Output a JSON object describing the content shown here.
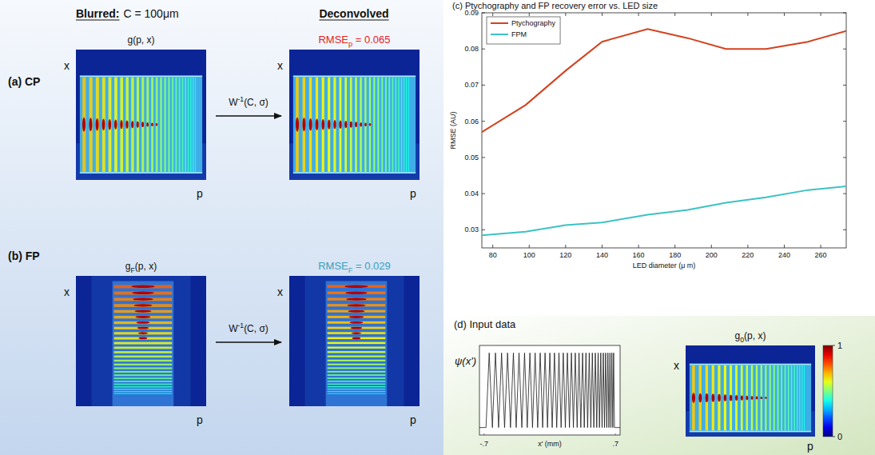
{
  "chart_data": [
    {
      "type": "line",
      "title": "(c) Ptychography and FP recovery error vs. LED size",
      "x_label": "LED diameter (μ m)",
      "y_label": "RMSE (AU)",
      "x": [
        74,
        98,
        120,
        140,
        165,
        187,
        208,
        230,
        253,
        274
      ],
      "series": [
        {
          "name": "Ptychography",
          "color": "#d2421f",
          "values": [
            0.057,
            0.0645,
            0.074,
            0.082,
            0.0855,
            0.083,
            0.08,
            0.08,
            0.082,
            0.085
          ]
        },
        {
          "name": "FPM",
          "color": "#3cc2c4",
          "values": [
            0.0285,
            0.0295,
            0.0313,
            0.032,
            0.0342,
            0.0355,
            0.0375,
            0.039,
            0.041,
            0.042
          ]
        }
      ],
      "xlim": [
        74,
        274
      ],
      "ylim": [
        0.025,
        0.09
      ],
      "xticks": [
        80,
        100,
        120,
        140,
        160,
        180,
        200,
        220,
        240,
        260
      ],
      "yticks": [
        0.03,
        0.04,
        0.05,
        0.06,
        0.07,
        0.08,
        0.09
      ],
      "legend": "upper left",
      "grid": false
    },
    {
      "type": "line",
      "x_label": "x' (mm)",
      "y_label": "ψ(x')",
      "x": [
        -0.75,
        -0.7,
        -0.68,
        -0.646,
        -0.612,
        -0.579,
        -0.546,
        -0.514,
        -0.482,
        -0.45,
        -0.419,
        -0.388,
        -0.358,
        -0.328,
        -0.298,
        -0.269,
        -0.24,
        -0.212,
        -0.184,
        -0.156,
        -0.129,
        -0.102,
        -0.076,
        -0.05,
        -0.024,
        0.001,
        0.026,
        0.05,
        0.074,
        0.098,
        0.121,
        0.144,
        0.166,
        0.188,
        0.21,
        0.231,
        0.252,
        0.272,
        0.292,
        0.312,
        0.331,
        0.35,
        0.368,
        0.386,
        0.404,
        0.421,
        0.438,
        0.454,
        0.47,
        0.486,
        0.501,
        0.516,
        0.53,
        0.544,
        0.558,
        0.571,
        0.584,
        0.596,
        0.608,
        0.62,
        0.631,
        0.642,
        0.652,
        0.662,
        0.672,
        0.681,
        0.69,
        0.7,
        0.75
      ],
      "values": [
        0,
        0,
        0,
        1,
        0,
        1,
        0,
        1,
        0,
        1,
        0,
        1,
        0,
        1,
        0,
        1,
        0,
        1,
        0,
        1,
        0,
        1,
        0,
        1,
        0,
        1,
        0,
        1,
        0,
        1,
        0,
        1,
        0,
        1,
        0,
        1,
        0,
        1,
        0,
        1,
        0,
        1,
        0,
        1,
        0,
        1,
        0,
        1,
        0,
        1,
        0,
        1,
        0,
        1,
        0,
        1,
        0,
        1,
        0,
        1,
        0,
        1,
        0,
        1,
        0,
        1,
        0,
        0,
        0
      ],
      "color": "#1a1a1a",
      "xlim": [
        -0.75,
        0.75
      ],
      "ylim": [
        -0.1,
        1.1
      ],
      "xticks": [
        {
          "value": -0.7,
          "label": "-.7"
        },
        {
          "value": 0.7,
          "label": ".7"
        }
      ],
      "tick_labels": "x"
    }
  ],
  "figure": {
    "header": {
      "blurred": "Blurred:",
      "blurred_setting": "C = 100μm",
      "deconvolved": "Deconvolved"
    },
    "rows": [
      {
        "label": "(a) CP",
        "style": "cp",
        "blurred_title": {
          "symbol": "g",
          "args": "(p, x)"
        },
        "operator": {
          "symbol": "W",
          "superscript": "-1",
          "args": "(C, σ)"
        },
        "result": {
          "metric": "RMSE",
          "subscript": "p",
          "equals": "=",
          "value": 0.065,
          "color": "#e8231c"
        },
        "x_axis": "p",
        "y_axis": "x"
      },
      {
        "label": "(b) FP",
        "style": "fp",
        "blurred_title": {
          "symbol": "g",
          "subscript": "F",
          "args": "(p, x)"
        },
        "operator": {
          "symbol": "W",
          "superscript": "-1",
          "args": "(C, σ)"
        },
        "result": {
          "metric": "RMSE",
          "subscript": "F",
          "equals": "=",
          "value": 0.029,
          "color": "#3d9fbf"
        },
        "x_axis": "p",
        "y_axis": "x"
      }
    ],
    "input": {
      "label": "(d) Input data",
      "title": {
        "symbol": "g",
        "subscript": "0",
        "args": "(p, x)"
      },
      "x_axis": "p",
      "y_axis": "x",
      "colorbar": {
        "range": [
          0,
          1
        ],
        "ticks": [
          0,
          1
        ]
      }
    }
  }
}
